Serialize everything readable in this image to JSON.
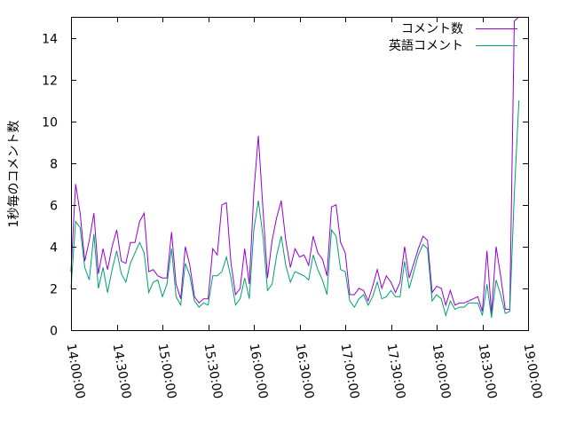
{
  "chart_data": {
    "type": "line",
    "title": "",
    "xlabel": "",
    "ylabel": "1秒毎のコメント数",
    "xlim": [
      "14:00:00",
      "19:00:00"
    ],
    "ylim": [
      0,
      15
    ],
    "y_ticks": [
      "0",
      "2",
      "4",
      "6",
      "8",
      "10",
      "12",
      "14"
    ],
    "x_ticks": [
      "14:00:00",
      "14:30:00",
      "15:00:00",
      "15:30:00",
      "16:00:00",
      "16:30:00",
      "17:00:00",
      "17:30:00",
      "18:00:00",
      "18:30:00",
      "19:00:00"
    ],
    "legend": "top-right",
    "grid": false,
    "x": [
      "14:00:00",
      "14:03:00",
      "14:06:00",
      "14:09:00",
      "14:12:00",
      "14:15:00",
      "14:18:00",
      "14:21:00",
      "14:24:00",
      "14:27:00",
      "14:30:00",
      "14:33:00",
      "14:36:00",
      "14:39:00",
      "14:42:00",
      "14:45:00",
      "14:48:00",
      "14:51:00",
      "14:54:00",
      "14:57:00",
      "15:00:00",
      "15:03:00",
      "15:06:00",
      "15:09:00",
      "15:12:00",
      "15:15:00",
      "15:18:00",
      "15:21:00",
      "15:24:00",
      "15:27:00",
      "15:30:00",
      "15:33:00",
      "15:36:00",
      "15:39:00",
      "15:42:00",
      "15:45:00",
      "15:48:00",
      "15:51:00",
      "15:54:00",
      "15:57:00",
      "16:00:00",
      "16:03:00",
      "16:06:00",
      "16:09:00",
      "16:12:00",
      "16:15:00",
      "16:18:00",
      "16:21:00",
      "16:24:00",
      "16:27:00",
      "16:30:00",
      "16:33:00",
      "16:36:00",
      "16:39:00",
      "16:42:00",
      "16:45:00",
      "16:48:00",
      "16:51:00",
      "16:54:00",
      "16:57:00",
      "17:00:00",
      "17:03:00",
      "17:06:00",
      "17:09:00",
      "17:12:00",
      "17:15:00",
      "17:18:00",
      "17:21:00",
      "17:24:00",
      "17:27:00",
      "17:30:00",
      "17:33:00",
      "17:36:00",
      "17:39:00",
      "17:42:00",
      "17:45:00",
      "17:48:00",
      "17:51:00",
      "17:54:00",
      "17:57:00",
      "18:00:00",
      "18:03:00",
      "18:06:00",
      "18:09:00",
      "18:12:00",
      "18:15:00",
      "18:18:00",
      "18:21:00",
      "18:24:00",
      "18:27:00",
      "18:30:00",
      "18:33:00",
      "18:36:00",
      "18:39:00",
      "18:42:00",
      "18:45:00",
      "18:48:00",
      "18:51:00",
      "18:54:00"
    ],
    "series": [
      {
        "name": "コメント数",
        "color": "#9400d3",
        "values": [
          2.8,
          7.0,
          5.6,
          3.3,
          4.3,
          5.6,
          2.7,
          3.9,
          2.9,
          4.0,
          4.8,
          3.3,
          3.2,
          4.2,
          4.2,
          5.2,
          5.6,
          2.8,
          2.9,
          2.6,
          2.5,
          2.5,
          4.7,
          2.2,
          1.5,
          4.0,
          3.1,
          1.6,
          1.3,
          1.5,
          1.5,
          3.9,
          3.6,
          6.0,
          6.1,
          3.2,
          1.7,
          2.0,
          3.9,
          2.2,
          6.6,
          9.3,
          5.8,
          2.5,
          4.3,
          5.4,
          6.2,
          4.3,
          3.0,
          3.9,
          3.5,
          3.6,
          3.1,
          4.5,
          3.7,
          3.4,
          2.6,
          5.9,
          6.0,
          4.2,
          3.7,
          1.7,
          1.7,
          2.0,
          1.9,
          1.4,
          2.1,
          2.9,
          2.0,
          2.6,
          2.3,
          1.8,
          2.3,
          4.0,
          2.5,
          3.2,
          3.9,
          4.5,
          4.3,
          1.8,
          2.1,
          2.0,
          1.2,
          1.9,
          1.2,
          1.3,
          1.3,
          1.4,
          1.5,
          1.6,
          0.9,
          3.8,
          0.8,
          4.0,
          2.6,
          1.0,
          1.0,
          14.8,
          15.0
        ]
      },
      {
        "name": "英語コメント",
        "color": "#009e73",
        "values": [
          2.0,
          5.2,
          4.9,
          3.0,
          2.4,
          4.6,
          2.0,
          3.0,
          1.8,
          2.9,
          3.8,
          2.7,
          2.3,
          3.2,
          3.7,
          4.2,
          3.7,
          1.8,
          2.3,
          2.4,
          1.6,
          2.2,
          3.9,
          1.6,
          1.2,
          3.2,
          2.6,
          1.4,
          1.1,
          1.3,
          1.2,
          2.6,
          2.6,
          2.8,
          3.5,
          2.5,
          1.2,
          1.5,
          2.5,
          1.5,
          4.8,
          6.2,
          4.5,
          1.9,
          2.2,
          3.6,
          4.5,
          3.1,
          2.3,
          2.8,
          2.7,
          2.6,
          2.4,
          3.6,
          2.9,
          2.4,
          1.7,
          4.8,
          4.5,
          2.9,
          2.8,
          1.4,
          1.1,
          1.5,
          1.7,
          1.2,
          1.6,
          2.3,
          1.5,
          1.6,
          1.9,
          1.6,
          1.6,
          3.3,
          2.0,
          2.8,
          3.6,
          4.1,
          3.9,
          1.4,
          1.7,
          1.5,
          0.7,
          1.4,
          1.0,
          1.1,
          1.1,
          1.3,
          1.3,
          1.3,
          0.7,
          2.2,
          0.6,
          2.4,
          1.7,
          0.8,
          0.9,
          6.5,
          11.0
        ]
      }
    ]
  }
}
